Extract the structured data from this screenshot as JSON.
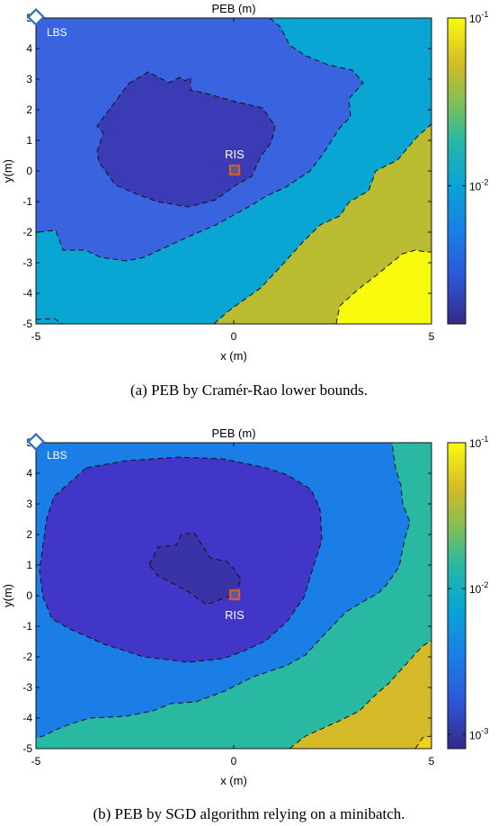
{
  "chart_data": [
    {
      "type": "heatmap",
      "title": "PEB (m)",
      "xlabel": "x (m)",
      "ylabel": "y(m)",
      "xlim": [
        -5,
        5
      ],
      "ylim": [
        -5,
        5
      ],
      "xticks": [
        "-5",
        "0",
        "5"
      ],
      "yticks": [
        "5",
        "4",
        "3",
        "2",
        "1",
        "0",
        "-1",
        "-2",
        "-3",
        "-4",
        "-5"
      ],
      "colorbar": {
        "scale": "log",
        "range": [
          0.0015,
          0.1
        ],
        "ticks": [
          {
            "base": "10",
            "exp": "-1",
            "value": 0.1
          },
          {
            "base": "10",
            "exp": "-2",
            "value": 0.01
          }
        ]
      },
      "markers": [
        {
          "label": "LBS",
          "shape": "diamond",
          "x": -5,
          "y": 5,
          "color": "#2b6fc0"
        },
        {
          "label": "RIS",
          "shape": "square",
          "x": 0,
          "y": 0,
          "color": "#d95a2b"
        }
      ],
      "contour_levels": [
        {
          "color": "#3b3bb5",
          "boundary": [
            [
              -3.5,
              3.1
            ],
            [
              -2.4,
              3.45
            ],
            [
              -1.8,
              3.2
            ],
            [
              -1.5,
              3.3
            ],
            [
              -1.2,
              3.05
            ],
            [
              -1.4,
              2.8
            ],
            [
              -0.7,
              2.6
            ],
            [
              0.3,
              2.2
            ],
            [
              1.0,
              1.6
            ],
            [
              0.9,
              0.8
            ],
            [
              0.5,
              0.2
            ],
            [
              0.3,
              -0.6
            ],
            [
              -0.8,
              -1.05
            ],
            [
              -1.6,
              -1.2
            ],
            [
              -2.5,
              -0.9
            ],
            [
              -3.2,
              -0.6
            ],
            [
              -3.6,
              0.3
            ],
            [
              -3.3,
              1.0
            ],
            [
              -3.6,
              1.6
            ],
            [
              -3.5,
              3.1
            ]
          ]
        }
      ],
      "caption": "(a) PEB by Cramér-Rao lower bounds."
    },
    {
      "type": "heatmap",
      "title": "PEB (m)",
      "xlabel": "x (m)",
      "ylabel": "y(m)",
      "xlim": [
        -5,
        5
      ],
      "ylim": [
        -5,
        5
      ],
      "xticks": [
        "-5",
        "0",
        "5"
      ],
      "yticks": [
        "5",
        "4",
        "3",
        "2",
        "1",
        "0",
        "-1",
        "-2",
        "-3",
        "-4",
        "-5"
      ],
      "colorbar": {
        "scale": "log",
        "range": [
          0.0008,
          0.1
        ],
        "ticks": [
          {
            "base": "10",
            "exp": "-1",
            "value": 0.1
          },
          {
            "base": "10",
            "exp": "-2",
            "value": 0.01
          },
          {
            "base": "10",
            "exp": "-3",
            "value": 0.001
          }
        ]
      },
      "markers": [
        {
          "label": "LBS",
          "shape": "diamond",
          "x": -5,
          "y": 5,
          "color": "#2b6fc0"
        },
        {
          "label": "RIS",
          "shape": "square",
          "x": 0,
          "y": 0,
          "color": "#d95a2b"
        }
      ],
      "contour_levels": [
        {
          "color": "#3a33a8",
          "boundary": [
            [
              -2.2,
              0.5
            ],
            [
              -1.8,
              1.2
            ],
            [
              -1.0,
              1.3
            ],
            [
              -0.8,
              1.8
            ],
            [
              -0.3,
              1.9
            ],
            [
              0.0,
              1.2
            ],
            [
              0.2,
              0.7
            ],
            [
              0.3,
              0.0
            ],
            [
              -0.3,
              -0.4
            ],
            [
              -1.0,
              0.0
            ],
            [
              -1.8,
              0.1
            ],
            [
              -2.2,
              0.5
            ]
          ]
        }
      ],
      "caption": "(b) PEB by SGD algorithm relying on a minibatch."
    }
  ]
}
